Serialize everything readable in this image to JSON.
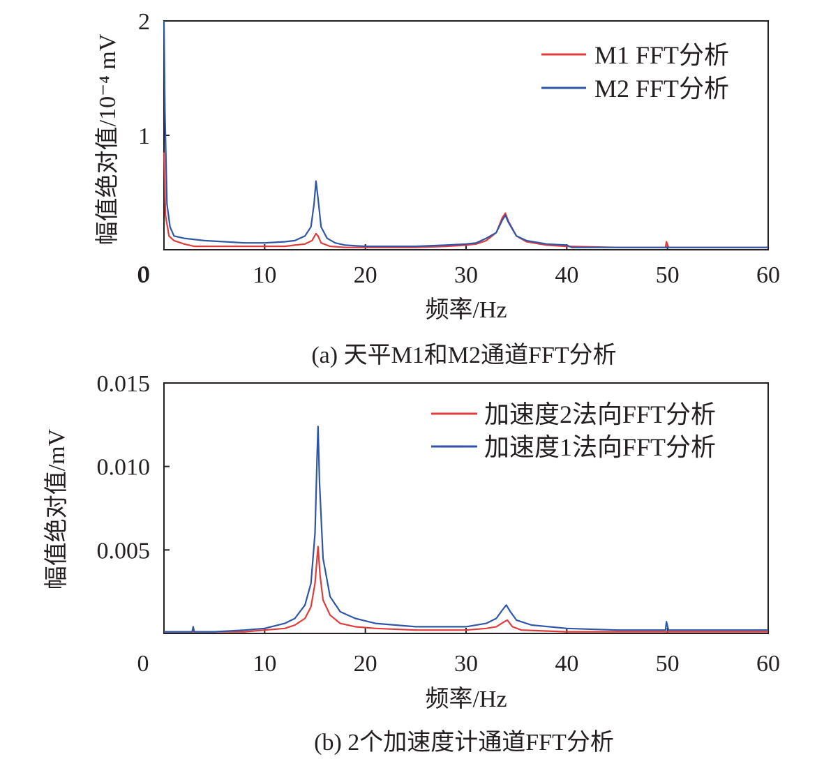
{
  "chart_data": [
    {
      "type": "line",
      "caption": "(a) 天平M1和M2通道FFT分析",
      "xlabel": "频率/Hz",
      "ylabel": "幅值绝对值/10⁻⁴ mV",
      "xlim": [
        0,
        60
      ],
      "ylim": [
        0,
        2
      ],
      "xticks": [
        "0",
        "10",
        "20",
        "30",
        "40",
        "50",
        "60"
      ],
      "yticks": [
        "0",
        "1",
        "2"
      ],
      "grid": false,
      "legend_position": "top-right",
      "colors": {
        "red": "#e03c3c",
        "blue": "#2f56a6"
      },
      "series": [
        {
          "name": "M1 FFT分析",
          "color": "#e03c3c",
          "points": [
            [
              0.0,
              0.85
            ],
            [
              0.15,
              0.3
            ],
            [
              0.5,
              0.12
            ],
            [
              1,
              0.08
            ],
            [
              2,
              0.05
            ],
            [
              3,
              0.03
            ],
            [
              5,
              0.03
            ],
            [
              8,
              0.03
            ],
            [
              10,
              0.03
            ],
            [
              12,
              0.03
            ],
            [
              13,
              0.04
            ],
            [
              14,
              0.05
            ],
            [
              14.7,
              0.08
            ],
            [
              15.1,
              0.14
            ],
            [
              15.3,
              0.12
            ],
            [
              15.6,
              0.06
            ],
            [
              16.5,
              0.03
            ],
            [
              18,
              0.02
            ],
            [
              20,
              0.02
            ],
            [
              25,
              0.02
            ],
            [
              28,
              0.03
            ],
            [
              30,
              0.04
            ],
            [
              31,
              0.05
            ],
            [
              32,
              0.08
            ],
            [
              33,
              0.15
            ],
            [
              33.6,
              0.28
            ],
            [
              33.9,
              0.32
            ],
            [
              34.2,
              0.25
            ],
            [
              35,
              0.12
            ],
            [
              36,
              0.07
            ],
            [
              38,
              0.04
            ],
            [
              40,
              0.03
            ],
            [
              45,
              0.02
            ],
            [
              49.8,
              0.02
            ],
            [
              49.9,
              0.07
            ],
            [
              50.1,
              0.02
            ],
            [
              55,
              0.02
            ],
            [
              60,
              0.02
            ]
          ]
        },
        {
          "name": "M2 FFT分析",
          "color": "#2f56a6",
          "points": [
            [
              0.0,
              2.0
            ],
            [
              0.1,
              1.2
            ],
            [
              0.3,
              0.4
            ],
            [
              0.6,
              0.2
            ],
            [
              1,
              0.12
            ],
            [
              2,
              0.1
            ],
            [
              4,
              0.08
            ],
            [
              6,
              0.07
            ],
            [
              8,
              0.06
            ],
            [
              10,
              0.06
            ],
            [
              12,
              0.07
            ],
            [
              13,
              0.08
            ],
            [
              14,
              0.12
            ],
            [
              14.6,
              0.2
            ],
            [
              14.9,
              0.4
            ],
            [
              15.1,
              0.6
            ],
            [
              15.3,
              0.45
            ],
            [
              15.6,
              0.2
            ],
            [
              16.2,
              0.1
            ],
            [
              17,
              0.06
            ],
            [
              18,
              0.04
            ],
            [
              20,
              0.03
            ],
            [
              25,
              0.03
            ],
            [
              28,
              0.04
            ],
            [
              30,
              0.05
            ],
            [
              31,
              0.06
            ],
            [
              32,
              0.1
            ],
            [
              33,
              0.15
            ],
            [
              33.6,
              0.26
            ],
            [
              33.9,
              0.3
            ],
            [
              34.2,
              0.24
            ],
            [
              35,
              0.12
            ],
            [
              36,
              0.08
            ],
            [
              38,
              0.05
            ],
            [
              40,
              0.04
            ],
            [
              40.5,
              0.02
            ],
            [
              45,
              0.02
            ],
            [
              50,
              0.02
            ],
            [
              55,
              0.02
            ],
            [
              60,
              0.02
            ]
          ]
        }
      ]
    },
    {
      "type": "line",
      "caption": "(b) 2个加速度计通道FFT分析",
      "xlabel": "频率/Hz",
      "ylabel": "幅值绝对值/mV",
      "xlim": [
        0,
        60
      ],
      "ylim": [
        0,
        0.015
      ],
      "xticks": [
        "0",
        "10",
        "20",
        "30",
        "40",
        "50",
        "60"
      ],
      "yticks": [
        "0.005",
        "0.010",
        "0.015"
      ],
      "grid": false,
      "legend_position": "top-right",
      "series": [
        {
          "name": "加速度2法向FFT分析",
          "color": "#e03c3c",
          "points": [
            [
              0.0,
              0.0001
            ],
            [
              5,
              0.0001
            ],
            [
              8,
              0.0001
            ],
            [
              10,
              0.0002
            ],
            [
              12,
              0.0003
            ],
            [
              13,
              0.0005
            ],
            [
              14,
              0.0009
            ],
            [
              14.6,
              0.0016
            ],
            [
              15,
              0.003
            ],
            [
              15.2,
              0.0045
            ],
            [
              15.3,
              0.0052
            ],
            [
              15.5,
              0.0035
            ],
            [
              15.8,
              0.002
            ],
            [
              16.5,
              0.0011
            ],
            [
              17.5,
              0.0006
            ],
            [
              19,
              0.0004
            ],
            [
              21,
              0.0003
            ],
            [
              25,
              0.0002
            ],
            [
              30,
              0.0002
            ],
            [
              32,
              0.0003
            ],
            [
              33,
              0.0004
            ],
            [
              33.8,
              0.0007
            ],
            [
              34.1,
              0.0008
            ],
            [
              34.6,
              0.0004
            ],
            [
              35.5,
              0.0002
            ],
            [
              40,
              0.0001
            ],
            [
              50,
              0.0001
            ],
            [
              60,
              0.0001
            ]
          ]
        },
        {
          "name": "加速度1法向FFT分析",
          "color": "#2f56a6",
          "points": [
            [
              0.0,
              0.0001
            ],
            [
              2.8,
              0.0001
            ],
            [
              2.9,
              0.0004
            ],
            [
              3.0,
              0.0001
            ],
            [
              5,
              0.0001
            ],
            [
              8,
              0.0002
            ],
            [
              10,
              0.0003
            ],
            [
              12,
              0.0006
            ],
            [
              13,
              0.0009
            ],
            [
              14,
              0.0017
            ],
            [
              14.6,
              0.003
            ],
            [
              15,
              0.006
            ],
            [
              15.2,
              0.0105
            ],
            [
              15.3,
              0.0124
            ],
            [
              15.45,
              0.009
            ],
            [
              15.8,
              0.0045
            ],
            [
              16.5,
              0.0022
            ],
            [
              17.5,
              0.0013
            ],
            [
              19,
              0.0009
            ],
            [
              21,
              0.0006
            ],
            [
              25,
              0.0004
            ],
            [
              30,
              0.0004
            ],
            [
              32,
              0.0006
            ],
            [
              33,
              0.0009
            ],
            [
              33.6,
              0.0014
            ],
            [
              34,
              0.0017
            ],
            [
              34.4,
              0.0013
            ],
            [
              35,
              0.0008
            ],
            [
              36.5,
              0.0005
            ],
            [
              40,
              0.0003
            ],
            [
              45,
              0.0002
            ],
            [
              49.8,
              0.0002
            ],
            [
              49.9,
              0.0007
            ],
            [
              50.1,
              0.0002
            ],
            [
              55,
              0.0002
            ],
            [
              60,
              0.0002
            ]
          ]
        }
      ]
    }
  ]
}
